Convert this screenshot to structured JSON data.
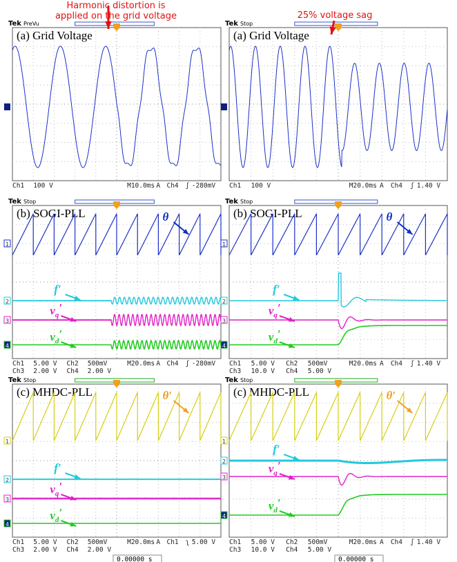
{
  "annotations": [
    [
      "Harmonic distortion is",
      "applied on the grid voltage"
    ],
    [
      "25% voltage sag"
    ]
  ],
  "panels": [
    {
      "header": [
        "Tek",
        "PreVu"
      ],
      "title": "(a) Grid Voltage",
      "markers": [
        "1"
      ],
      "labels": [],
      "footer": [
        [
          "Ch1",
          "100 V",
          "M10.0ms",
          "A",
          "Ch4",
          "ʃ",
          "-280mV"
        ]
      ]
    },
    {
      "header": [
        "Tek",
        "Stop"
      ],
      "title": "(a) Grid Voltage",
      "markers": [
        "1"
      ],
      "labels": [],
      "footer": [
        [
          "Ch1",
          "100 V",
          "M20.0ms",
          "A",
          "Ch4",
          "ʃ",
          "1.40 V"
        ]
      ]
    },
    {
      "header": [
        "Tek",
        "Stop"
      ],
      "title": "(b) SOGI-PLL",
      "markers": [
        "1",
        "2",
        "3",
        "4"
      ],
      "labels": [
        {
          "text": "θ"
        },
        {
          "text": "f′"
        },
        {
          "text": "v",
          "sub": "q",
          "mark": "′"
        },
        {
          "text": "v",
          "sub": "d",
          "mark": "′"
        }
      ],
      "footer": [
        [
          "Ch1",
          "5.00 V",
          "Ch2",
          "500mV",
          "M20.0ms",
          "A",
          "Ch4",
          "ʃ",
          "-280mV"
        ],
        [
          "Ch3",
          "2.00 V",
          "Ch4",
          "2.00 V"
        ]
      ]
    },
    {
      "header": [
        "Tek",
        "Stop"
      ],
      "title": "(b) SOGI-PLL",
      "markers": [
        "1",
        "2",
        "3",
        "4"
      ],
      "labels": [
        {
          "text": "θ"
        },
        {
          "text": "f′"
        },
        {
          "text": "v",
          "sub": "q",
          "mark": "′"
        },
        {
          "text": "v",
          "sub": "d",
          "mark": "′"
        }
      ],
      "footer": [
        [
          "Ch1",
          "5.00 V",
          "Ch2",
          "500mV",
          "M20.0ms",
          "A",
          "Ch4",
          "ʃ",
          "1.40 V"
        ],
        [
          "Ch3",
          "10.0 V",
          "Ch4",
          "5.00 V"
        ]
      ]
    },
    {
      "header": [
        "Tek",
        "Stop"
      ],
      "title": "(c) MHDC-PLL",
      "markers": [
        "1",
        "2",
        "3",
        "4"
      ],
      "labels": [
        {
          "text": "θ′"
        },
        {
          "text": "f′"
        },
        {
          "text": "v",
          "sub": "q",
          "mark": "′"
        },
        {
          "text": "v",
          "sub": "d",
          "mark": "′"
        }
      ],
      "footer": [
        [
          "Ch1",
          "5.00 V",
          "Ch2",
          "500mV",
          "M20.0ms",
          "A",
          "Ch1",
          "ʅ",
          "5.00 V"
        ],
        [
          "Ch3",
          "2.00 V",
          "Ch4",
          "2.00 V"
        ]
      ],
      "time": "0.00000 s"
    },
    {
      "header": [
        "Tek",
        "Stop"
      ],
      "title": "(c) MHDC-PLL",
      "markers": [
        "1",
        "2",
        "3",
        "4"
      ],
      "labels": [
        {
          "text": "θ′"
        },
        {
          "text": "f′"
        },
        {
          "text": "v",
          "sub": "q",
          "mark": "′"
        },
        {
          "text": "v",
          "sub": "d",
          "mark": "′"
        }
      ],
      "footer": [
        [
          "Ch1",
          "5.00 V",
          "Ch2",
          "500mV",
          "M20.0ms",
          "A",
          "Ch4",
          "ʃ",
          "1.40 V"
        ],
        [
          "Ch3",
          "10.0 V",
          "Ch4",
          "5.00 V"
        ]
      ],
      "time": "0.00000 s"
    }
  ]
}
